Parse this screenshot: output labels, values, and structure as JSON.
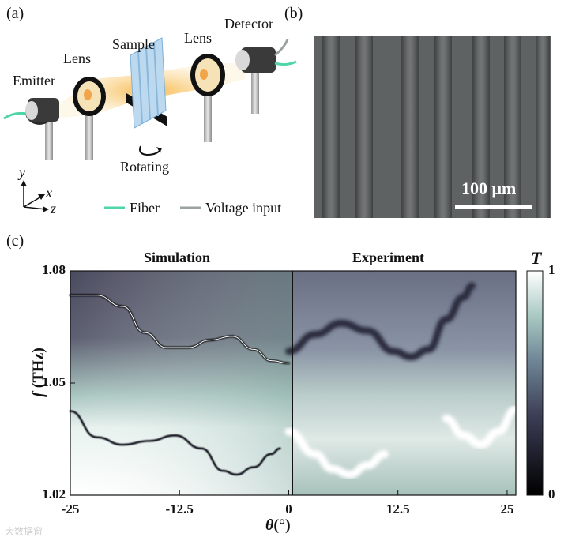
{
  "figure": {
    "labels": {
      "a": "(a)",
      "b": "(b)",
      "c": "(c)"
    }
  },
  "setup": {
    "components": {
      "emitter": "Emitter",
      "lens_left": "Lens",
      "sample": "Sample",
      "lens_right": "Lens",
      "detector": "Detector",
      "rotating": "Rotating"
    },
    "axes": {
      "y": "y",
      "x": "x",
      "z": "z"
    },
    "legend": [
      {
        "label": "Fiber",
        "color": "#4fd6a6"
      },
      {
        "label": "Voltage input",
        "color": "#9aa2a2"
      }
    ]
  },
  "micrograph": {
    "scale_label": "100 μm",
    "stripe_count": 7
  },
  "chart_data": {
    "type": "heatmap",
    "panels": [
      {
        "title": "Simulation",
        "x_range": [
          -25,
          0
        ],
        "dark_band": [
          {
            "x": -25,
            "y": 1.0735
          },
          {
            "x": -22,
            "y": 1.0735
          },
          {
            "x": -19,
            "y": 1.0705
          },
          {
            "x": -16.5,
            "y": 1.0635
          },
          {
            "x": -14,
            "y": 1.0595
          },
          {
            "x": -11.5,
            "y": 1.0595
          },
          {
            "x": -9,
            "y": 1.0615
          },
          {
            "x": -6.5,
            "y": 1.0625
          },
          {
            "x": -4,
            "y": 1.059
          },
          {
            "x": -2,
            "y": 1.056
          },
          {
            "x": 0,
            "y": 1.0553
          }
        ],
        "lower_band": [
          {
            "x": -25,
            "y": 1.0425
          },
          {
            "x": -22,
            "y": 1.0355
          },
          {
            "x": -19,
            "y": 1.0335
          },
          {
            "x": -16,
            "y": 1.0345
          },
          {
            "x": -13,
            "y": 1.036
          },
          {
            "x": -10,
            "y": 1.0325
          },
          {
            "x": -7.5,
            "y": 1.0265
          },
          {
            "x": -6,
            "y": 1.0255
          },
          {
            "x": -4,
            "y": 1.0275
          },
          {
            "x": -2,
            "y": 1.031
          },
          {
            "x": -1,
            "y": 1.0325
          }
        ]
      },
      {
        "title": "Experiment",
        "x_range": [
          0,
          26
        ],
        "dark_band": [
          {
            "x": 0,
            "y": 1.0585
          },
          {
            "x": 3,
            "y": 1.063
          },
          {
            "x": 6,
            "y": 1.066
          },
          {
            "x": 9,
            "y": 1.064
          },
          {
            "x": 12,
            "y": 1.0585
          },
          {
            "x": 14,
            "y": 1.057
          },
          {
            "x": 16,
            "y": 1.059
          },
          {
            "x": 18,
            "y": 1.067
          },
          {
            "x": 20,
            "y": 1.073
          },
          {
            "x": 21,
            "y": 1.076
          }
        ],
        "light_band": [
          {
            "x": 0,
            "y": 1.037
          },
          {
            "x": 3,
            "y": 1.031
          },
          {
            "x": 5,
            "y": 1.027
          },
          {
            "x": 7,
            "y": 1.0255
          },
          {
            "x": 9,
            "y": 1.028
          },
          {
            "x": 11,
            "y": 1.031
          }
        ],
        "light_band_2": [
          {
            "x": 18,
            "y": 1.0405
          },
          {
            "x": 20,
            "y": 1.036
          },
          {
            "x": 22,
            "y": 1.0335
          },
          {
            "x": 24,
            "y": 1.037
          },
          {
            "x": 26,
            "y": 1.043
          }
        ]
      }
    ],
    "xlabel_symbol": "θ",
    "xlabel_unit": "(°)",
    "ylabel_symbol": "f",
    "ylabel_unit": "(THz)",
    "xlim": [
      -25,
      26
    ],
    "ylim": [
      1.02,
      1.08
    ],
    "xticks": [
      "-25",
      "-12.5",
      "0",
      "12.5",
      "25"
    ],
    "xtick_values": [
      -25,
      -12.5,
      0,
      12.5,
      25
    ],
    "yticks": [
      "1.08",
      "1.05",
      "1.02"
    ],
    "ytick_values": [
      1.08,
      1.05,
      1.02
    ],
    "colorbar": {
      "label": "T",
      "min_label": "0",
      "max_label": "1",
      "range": [
        0,
        1
      ]
    }
  },
  "watermark": "大数据窗"
}
